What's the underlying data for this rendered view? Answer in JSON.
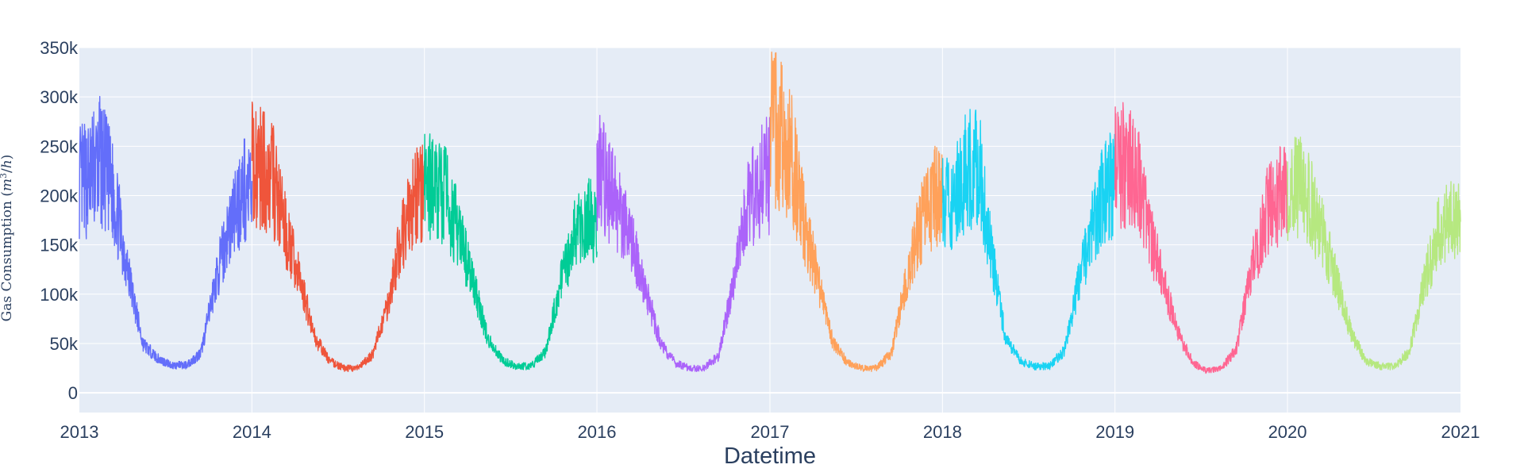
{
  "chart_data": {
    "type": "line",
    "title": "",
    "xlabel": "Datetime",
    "ylabel": "Gas Consumption (m³/h)",
    "ylabel_parts": {
      "prefix": "Gas Consumption (",
      "var_m": "m",
      "sup": "3",
      "slash": "/",
      "var_h": "h",
      "suffix": ")"
    },
    "xlim": [
      "2013",
      "2021"
    ],
    "ylim": [
      -20000,
      350000
    ],
    "grid": true,
    "legend": "none",
    "x_ticks": [
      "2013",
      "2014",
      "2015",
      "2016",
      "2017",
      "2018",
      "2019",
      "2020",
      "2021"
    ],
    "y_ticks": [
      {
        "value": 0,
        "label": "0"
      },
      {
        "value": 50000,
        "label": "50k"
      },
      {
        "value": 100000,
        "label": "100k"
      },
      {
        "value": 150000,
        "label": "150k"
      },
      {
        "value": 200000,
        "label": "200k"
      },
      {
        "value": 250000,
        "label": "250k"
      },
      {
        "value": 300000,
        "label": "300k"
      },
      {
        "value": 350000,
        "label": "350k"
      }
    ],
    "series": [
      {
        "year": 2013,
        "color": "#636efa",
        "x": [
          "2013-01",
          "2013-02",
          "2013-03",
          "2013-04",
          "2013-05",
          "2013-06",
          "2013-07",
          "2013-08",
          "2013-09",
          "2013-10",
          "2013-11",
          "2013-12"
        ],
        "values": [
          215000,
          235000,
          200000,
          120000,
          50000,
          35000,
          28000,
          28000,
          40000,
          110000,
          170000,
          205000
        ]
      },
      {
        "year": 2014,
        "color": "#ef553b",
        "x": [
          "2014-01",
          "2014-02",
          "2014-03",
          "2014-04",
          "2014-05",
          "2014-06",
          "2014-07",
          "2014-08",
          "2014-09",
          "2014-10",
          "2014-11",
          "2014-12"
        ],
        "values": [
          230000,
          215000,
          160000,
          110000,
          55000,
          32000,
          25000,
          25000,
          40000,
          90000,
          160000,
          200000
        ]
      },
      {
        "year": 2015,
        "color": "#00cc96",
        "x": [
          "2015-01",
          "2015-02",
          "2015-03",
          "2015-04",
          "2015-05",
          "2015-06",
          "2015-07",
          "2015-08",
          "2015-09",
          "2015-10",
          "2015-11",
          "2015-12"
        ],
        "values": [
          210000,
          200000,
          160000,
          110000,
          55000,
          33000,
          27000,
          27000,
          42000,
          110000,
          160000,
          175000
        ]
      },
      {
        "year": 2016,
        "color": "#ab63fa",
        "x": [
          "2016-01",
          "2016-02",
          "2016-03",
          "2016-04",
          "2016-05",
          "2016-06",
          "2016-07",
          "2016-08",
          "2016-09",
          "2016-10",
          "2016-11",
          "2016-12"
        ],
        "values": [
          220000,
          185000,
          150000,
          100000,
          50000,
          30000,
          25000,
          25000,
          38000,
          110000,
          190000,
          220000
        ]
      },
      {
        "year": 2017,
        "color": "#ffa15a",
        "x": [
          "2017-01",
          "2017-02",
          "2017-03",
          "2017-04",
          "2017-05",
          "2017-06",
          "2017-07",
          "2017-08",
          "2017-09",
          "2017-10",
          "2017-11",
          "2017-12"
        ],
        "values": [
          270000,
          240000,
          170000,
          110000,
          50000,
          30000,
          25000,
          25000,
          40000,
          110000,
          170000,
          200000
        ]
      },
      {
        "year": 2018,
        "color": "#19d3f3",
        "x": [
          "2018-01",
          "2018-02",
          "2018-03",
          "2018-04",
          "2018-05",
          "2018-06",
          "2018-07",
          "2018-08",
          "2018-09",
          "2018-10",
          "2018-11",
          "2018-12"
        ],
        "values": [
          190000,
          220000,
          240000,
          140000,
          55000,
          32000,
          27000,
          27000,
          42000,
          110000,
          170000,
          210000
        ]
      },
      {
        "year": 2019,
        "color": "#ff6692",
        "x": [
          "2019-01",
          "2019-02",
          "2019-03",
          "2019-04",
          "2019-05",
          "2019-06",
          "2019-07",
          "2019-08",
          "2019-09",
          "2019-10",
          "2019-11",
          "2019-12"
        ],
        "values": [
          230000,
          220000,
          160000,
          110000,
          60000,
          30000,
          22000,
          25000,
          45000,
          120000,
          180000,
          200000
        ]
      },
      {
        "year": 2020,
        "color": "#b6e880",
        "x": [
          "2020-01",
          "2020-02",
          "2020-03",
          "2020-04",
          "2020-05",
          "2020-06",
          "2020-07",
          "2020-08",
          "2020-09",
          "2020-10",
          "2020-11",
          "2020-12"
        ],
        "values": [
          210000,
          200000,
          160000,
          110000,
          60000,
          32000,
          27000,
          27000,
          42000,
          110000,
          160000,
          180000
        ]
      }
    ]
  }
}
